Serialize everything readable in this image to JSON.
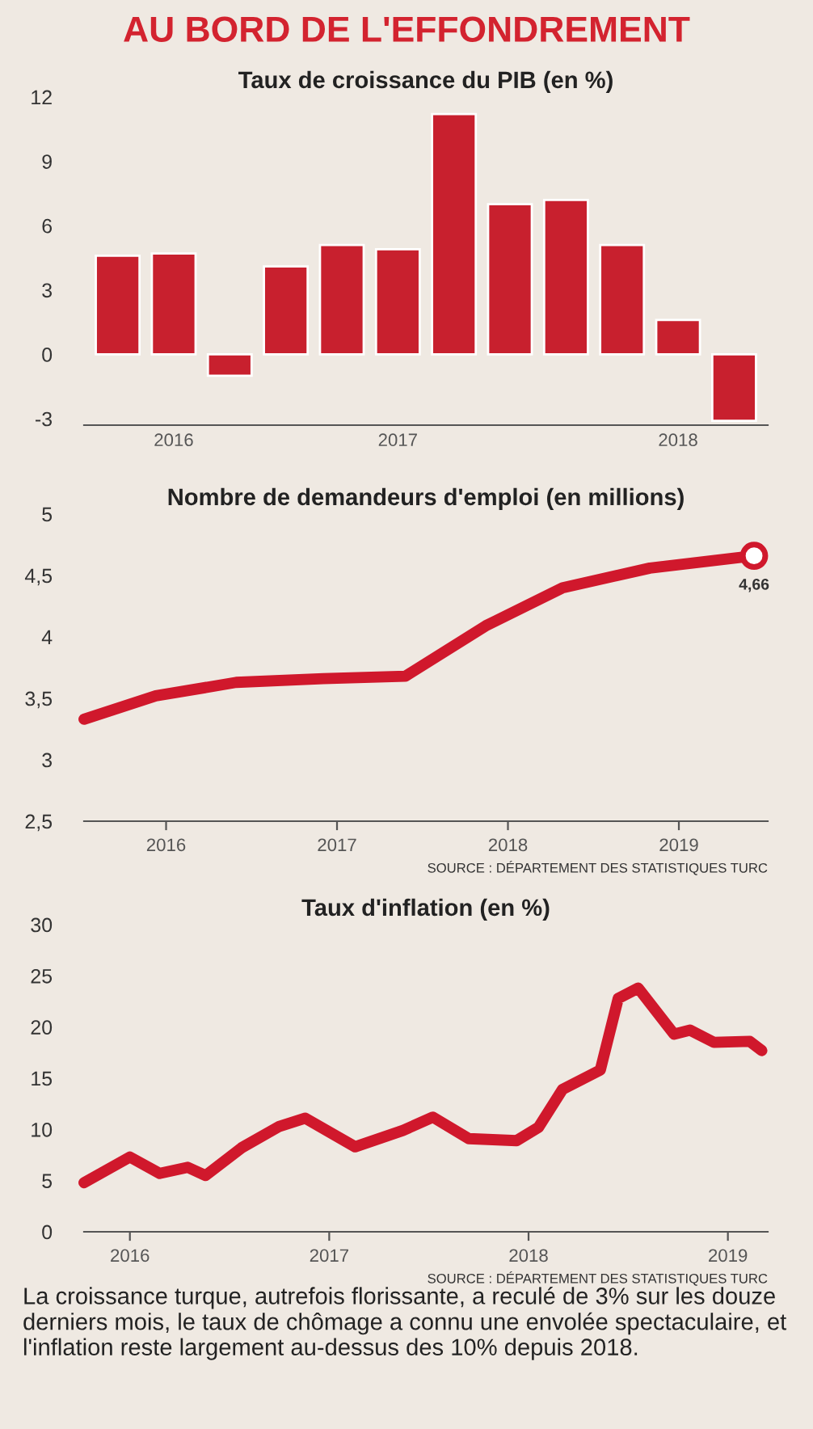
{
  "chart_data": [
    {
      "type": "other",
      "title": "AU BORD DE L'EFFONDREMENT"
    },
    {
      "type": "bar",
      "title": "Taux de croissance du PIB (en %)",
      "categories": [
        null,
        "2016",
        null,
        null,
        null,
        "2017",
        null,
        null,
        null,
        null,
        "2018",
        null
      ],
      "values": [
        4.6,
        4.7,
        -1.0,
        4.1,
        5.1,
        4.9,
        11.2,
        7.0,
        7.2,
        5.1,
        1.6,
        -3.1
      ],
      "color": "#c8202e",
      "ylim": [
        -3.3,
        12
      ],
      "yticks": [
        -3,
        0,
        3,
        6,
        9,
        12
      ],
      "grid": false
    },
    {
      "type": "line",
      "title": "Nombre de demandeurs d'emploi (en millions)",
      "x": [
        2015.52,
        2015.94,
        2016.41,
        2016.92,
        2017.4,
        2017.87,
        2018.32,
        2018.83,
        2019.44
      ],
      "values": [
        3.33,
        3.52,
        3.63,
        3.66,
        3.68,
        4.09,
        4.4,
        4.56,
        4.66
      ],
      "value_labels": [
        null,
        null,
        null,
        null,
        null,
        null,
        null,
        null,
        "4,66"
      ],
      "color": "#d0182c",
      "xlim": [
        2015.52,
        2019.52
      ],
      "xticks": [
        2016,
        2017,
        2018,
        2019
      ],
      "ylim": [
        2.5,
        5
      ],
      "yticks": [
        {
          "value": 2.5,
          "label": "2,5"
        },
        3,
        {
          "value": 3.5,
          "label": "3,5"
        },
        4,
        {
          "value": 4.5,
          "label": "4,5"
        },
        5
      ],
      "grid": false,
      "annotations": [
        "SOURCE : DÉPARTEMENT DES STATISTIQUES TURC"
      ]
    },
    {
      "type": "line",
      "title": "Taux d'inflation (en %)",
      "x": [
        2015.77,
        2016.0,
        2016.15,
        2016.29,
        2016.38,
        2016.56,
        2016.75,
        2016.88,
        2017.13,
        2017.37,
        2017.52,
        2017.7,
        2017.94,
        2018.05,
        2018.17,
        2018.36,
        2018.45,
        2018.55,
        2018.73,
        2018.81,
        2018.93,
        2019.11,
        2019.17
      ],
      "values": [
        4.8,
        7.3,
        5.7,
        6.3,
        5.5,
        8.2,
        10.3,
        11.1,
        8.3,
        9.9,
        11.2,
        9.1,
        8.9,
        10.2,
        13.9,
        15.8,
        22.8,
        23.8,
        19.3,
        19.7,
        18.5,
        18.6,
        17.7
      ],
      "color": "#d0182c",
      "xlim": [
        2015.77,
        2019.2
      ],
      "xticks": [
        2016,
        2017,
        2018,
        2019
      ],
      "ylim": [
        0,
        30
      ],
      "yticks": [
        0,
        5,
        10,
        15,
        20,
        25,
        30
      ],
      "grid": false,
      "annotations": [
        "SOURCE : DÉPARTEMENT DES STATISTIQUES TURC"
      ]
    },
    {
      "type": "other",
      "annotations": [
        "La croissance turque, autrefois florissante, a reculé de 3% sur les douze derniers mois, le taux de chômage a connu une envolée spectaculaire, et l'inflation reste largement au-dessus des 10% depuis 2018."
      ]
    }
  ]
}
